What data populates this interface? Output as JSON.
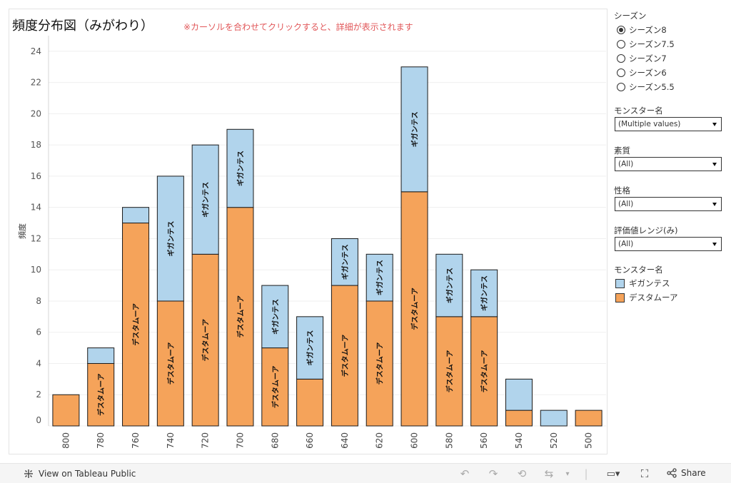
{
  "header": {
    "title": "頻度分布図（みがわり）",
    "hint": "※カーソルを合わせてクリックすると、詳細が表示されます"
  },
  "chart_data": {
    "type": "bar",
    "stacked": true,
    "categories": [
      "800",
      "780",
      "760",
      "740",
      "720",
      "700",
      "680",
      "660",
      "640",
      "620",
      "600",
      "580",
      "560",
      "540",
      "520",
      "500"
    ],
    "series": [
      {
        "name": "デスタムーア",
        "color": "#f5a35a",
        "values": [
          2,
          4,
          13,
          8,
          11,
          14,
          5,
          3,
          9,
          8,
          15,
          7,
          7,
          1,
          0,
          1
        ]
      },
      {
        "name": "ギガンテス",
        "color": "#b1d4ec",
        "values": [
          0,
          1,
          1,
          8,
          7,
          5,
          4,
          4,
          3,
          3,
          8,
          4,
          3,
          2,
          1,
          0
        ]
      }
    ],
    "ylabel": "頻度",
    "ylim": [
      0,
      25
    ],
    "yticks": [
      "0",
      "2",
      "4",
      "6",
      "8",
      "10",
      "12",
      "14",
      "16",
      "18",
      "20",
      "22",
      "24"
    ],
    "segment_labels": true
  },
  "filters": {
    "season": {
      "title": "シーズン",
      "options": [
        "シーズン8",
        "シーズン7.5",
        "シーズン7",
        "シーズン6",
        "シーズン5.5"
      ],
      "selected": "シーズン8"
    },
    "monster": {
      "title": "モンスター名",
      "value": "(Multiple values)"
    },
    "quality": {
      "title": "素質",
      "value": "(All)"
    },
    "nature": {
      "title": "性格",
      "value": "(All)"
    },
    "range": {
      "title": "評価値レンジ(み)",
      "value": "(All)"
    }
  },
  "legend": {
    "title": "モンスター名",
    "items": [
      {
        "label": "ギガンテス",
        "color": "#b1d4ec"
      },
      {
        "label": "デスタムーア",
        "color": "#f5a35a"
      }
    ]
  },
  "footer": {
    "link": "View on Tableau Public",
    "share": "Share"
  }
}
